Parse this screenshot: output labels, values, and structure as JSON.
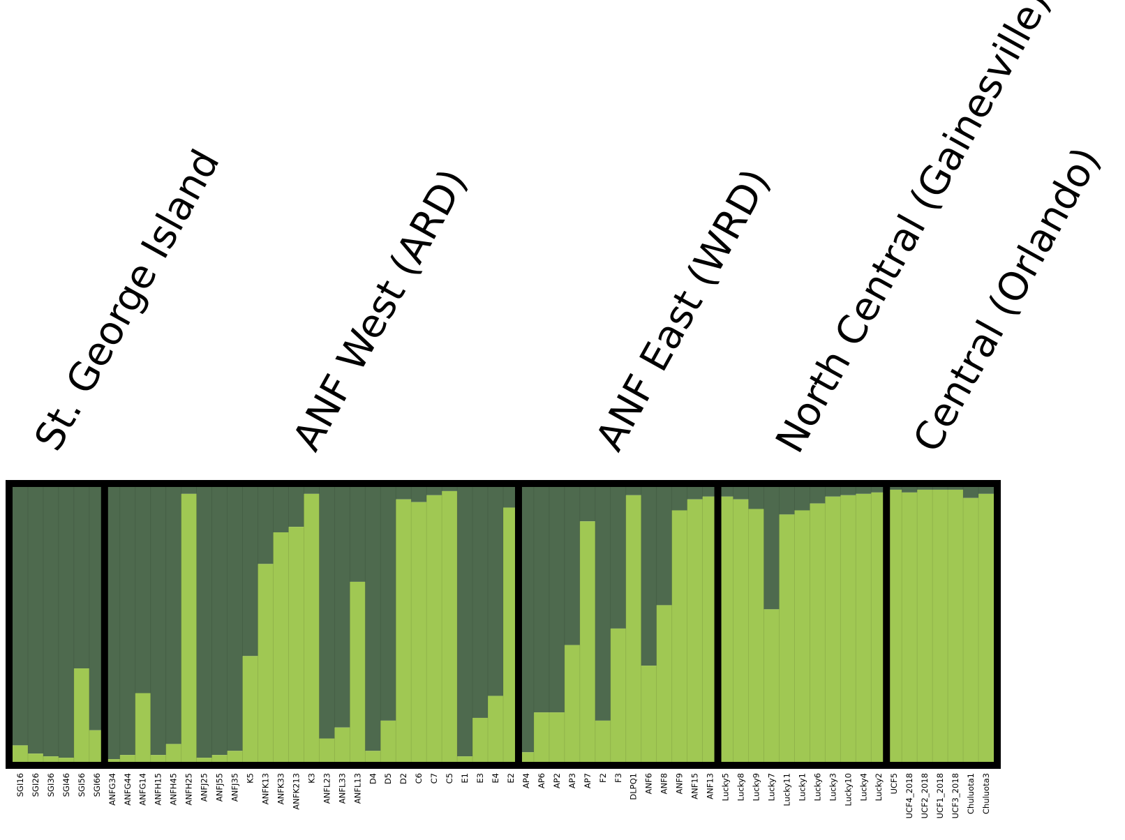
{
  "chart_data": {
    "type": "bar",
    "stacked": true,
    "ylim": [
      0,
      1
    ],
    "colors": {
      "light": "#a0c853",
      "dark": "#4e6a4e",
      "frame": "#000000"
    },
    "series": [
      {
        "name": "",
        "color": "#a0c853"
      },
      {
        "name": "",
        "color": "#4e6a4e"
      }
    ],
    "groups": [
      {
        "label": "St. George Island",
        "start": 0,
        "count": 6
      },
      {
        "label": "ANF West (ARD)",
        "start": 6,
        "count": 27
      },
      {
        "label": "ANF East (WRD)",
        "start": 33,
        "count": 13
      },
      {
        "label": "North Central (Gainesville)",
        "start": 46,
        "count": 11
      },
      {
        "label": "Central (Orlando)",
        "start": 57,
        "count": 7
      }
    ],
    "categories": [
      "SGI16",
      "SGI26",
      "SGI36",
      "SGI46",
      "SGI56",
      "SGI66",
      "ANFG34",
      "ANFG44",
      "ANFG14",
      "ANFH15",
      "ANFH45",
      "ANFH25",
      "ANFJ25",
      "ANFJ55",
      "ANFJ35",
      "K5",
      "ANFK13",
      "ANFK33",
      "ANFK213",
      "K3",
      "ANFL23",
      "ANFL33",
      "ANFL13",
      "D4",
      "D5",
      "D2",
      "C6",
      "C7",
      "C5",
      "E1",
      "E3",
      "E4",
      "E2",
      "AP4",
      "AP6",
      "AP2",
      "AP3",
      "AP7",
      "F2",
      "F3",
      "DLPQ1",
      "ANF6",
      "ANF8",
      "ANF9",
      "ANF15",
      "ANF13",
      "Lucky5",
      "Lucky8",
      "Lucky9",
      "Lucky7",
      "Lucky11",
      "Lucky1",
      "Lucky6",
      "Lucky3",
      "Lucky10",
      "Lucky4",
      "Lucky2",
      "UCF5",
      "UCF4_2018",
      "UCF2_2018",
      "UCF1_2018",
      "UCF3_2018",
      "Chuluota1",
      "Chuluota3"
    ],
    "values": [
      0.06,
      0.03,
      0.02,
      0.015,
      0.34,
      0.115,
      0.01,
      0.025,
      0.25,
      0.025,
      0.065,
      0.975,
      0.015,
      0.025,
      0.04,
      0.385,
      0.72,
      0.835,
      0.855,
      0.975,
      0.085,
      0.125,
      0.655,
      0.04,
      0.15,
      0.955,
      0.945,
      0.97,
      0.985,
      0.02,
      0.16,
      0.24,
      0.925,
      0.035,
      0.18,
      0.18,
      0.425,
      0.875,
      0.15,
      0.485,
      0.97,
      0.35,
      0.57,
      0.915,
      0.955,
      0.965,
      0.965,
      0.955,
      0.92,
      0.555,
      0.9,
      0.915,
      0.94,
      0.965,
      0.97,
      0.975,
      0.98,
      0.99,
      0.98,
      0.99,
      0.99,
      0.99,
      0.96,
      0.975
    ]
  }
}
